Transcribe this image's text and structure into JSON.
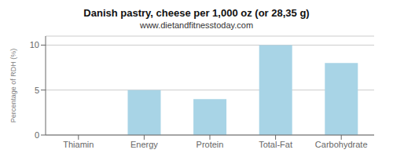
{
  "chart_data": {
    "type": "bar",
    "title": "Danish pastry, cheese per 1,000 oz (or 28,35 g)",
    "subtitle": "www.dietandfitnesstoday.com",
    "categories": [
      "Thiamin",
      "Energy",
      "Protein",
      "Total-Fat",
      "Carbohydrate"
    ],
    "values": [
      0,
      5,
      4,
      10,
      8
    ],
    "color": "#a8d4e6",
    "ylabel": "Percentage of RDH (%)",
    "ylim": [
      0,
      11
    ],
    "yticks": [
      0,
      5,
      10
    ],
    "grid": true
  }
}
